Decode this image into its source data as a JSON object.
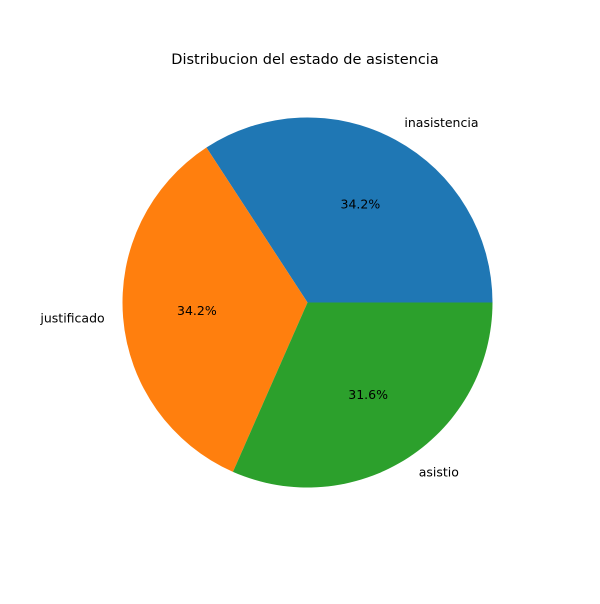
{
  "chart_data": {
    "type": "pie",
    "title": "Distribucion del estado de asistencia",
    "labels": [
      "inasistencia",
      "justificado",
      "asistio"
    ],
    "values": [
      34.2,
      34.2,
      31.6
    ],
    "percent_labels": [
      "34.2%",
      "34.2%",
      "31.6%"
    ],
    "colors": [
      "#1f77b4",
      "#ff7f0e",
      "#2ca02c"
    ],
    "start_angle_deg": 0,
    "direction": "counterclockwise",
    "legend": "none"
  }
}
